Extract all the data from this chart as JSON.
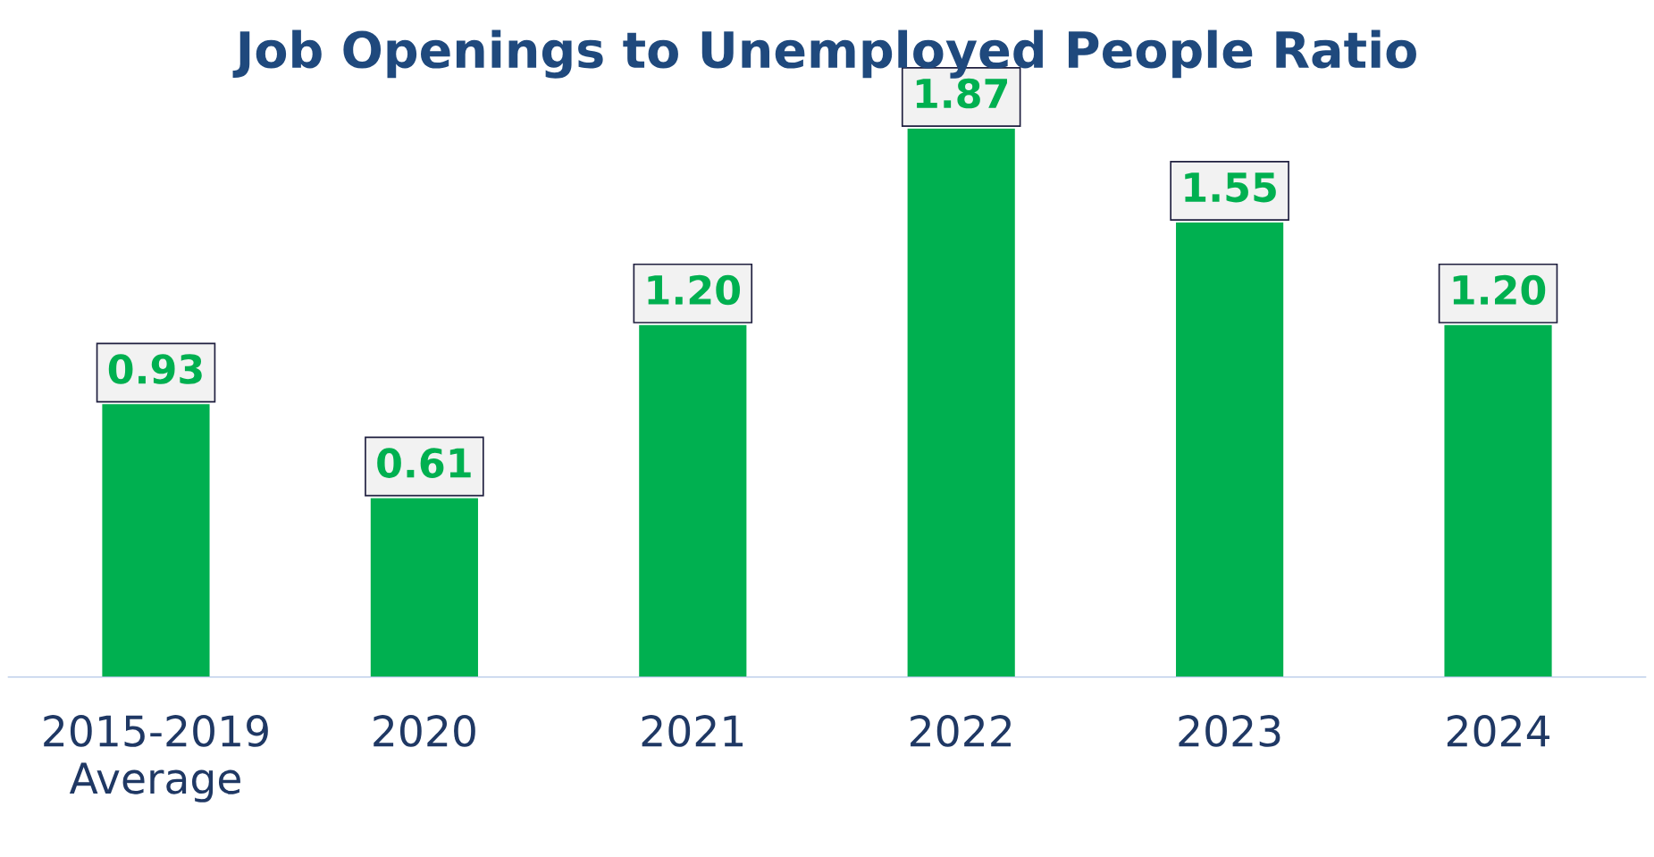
{
  "chart_data": {
    "type": "bar",
    "title": "Job Openings to Unemployed People Ratio",
    "categories": [
      "2015-2019\nAverage",
      "2020",
      "2021",
      "2022",
      "2023",
      "2024"
    ],
    "values": [
      0.93,
      0.61,
      1.2,
      1.87,
      1.55,
      1.2
    ],
    "value_labels": [
      "0.93",
      "0.61",
      "1.20",
      "1.87",
      "1.55",
      "1.20"
    ],
    "color": "#00b050",
    "grid": false,
    "legend": false
  }
}
